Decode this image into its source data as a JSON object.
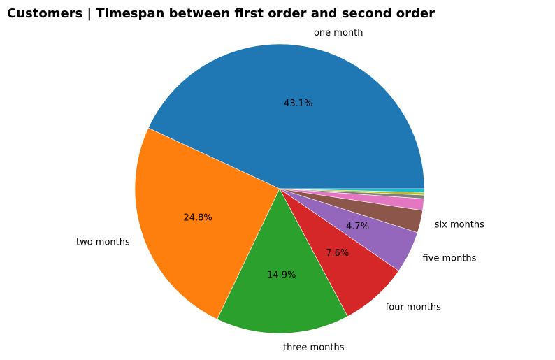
{
  "chart_data": {
    "type": "pie",
    "title": "Customers | Timespan between first order and second order",
    "start_angle_deg": 0,
    "direction": "counterclockwise",
    "slices": [
      {
        "label": "one month",
        "value": 43.1,
        "pct_label": "43.1%",
        "color": "#1f77b4"
      },
      {
        "label": "two months",
        "value": 24.8,
        "pct_label": "24.8%",
        "color": "#ff7f0e"
      },
      {
        "label": "three months",
        "value": 14.9,
        "pct_label": "14.9%",
        "color": "#2ca02c"
      },
      {
        "label": "four months",
        "value": 7.6,
        "pct_label": "7.6%",
        "color": "#d62728"
      },
      {
        "label": "five months",
        "value": 4.7,
        "pct_label": "4.7%",
        "color": "#9467bd"
      },
      {
        "label": "six months",
        "value": 2.5,
        "pct_label": "",
        "color": "#8c564b"
      },
      {
        "label": "",
        "value": 1.3,
        "pct_label": "",
        "color": "#e377c2"
      },
      {
        "label": "",
        "value": 0.4,
        "pct_label": "",
        "color": "#7f7f7f"
      },
      {
        "label": "",
        "value": 0.3,
        "pct_label": "",
        "color": "#bcbd22"
      },
      {
        "label": "",
        "value": 0.4,
        "pct_label": "",
        "color": "#17becf"
      }
    ]
  }
}
